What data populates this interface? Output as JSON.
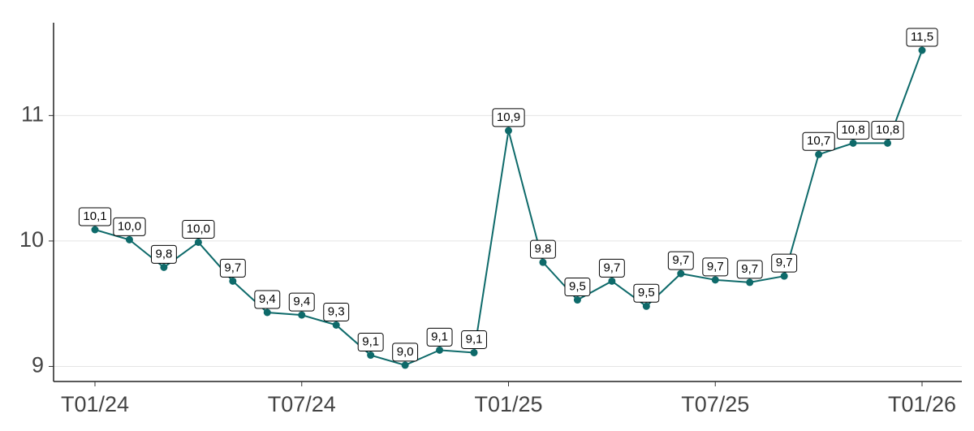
{
  "chart_data": {
    "type": "line",
    "categories": [
      "T01/24",
      null,
      null,
      null,
      null,
      null,
      "T07/24",
      null,
      null,
      null,
      null,
      null,
      "T01/25",
      null,
      null,
      null,
      null,
      null,
      "T07/25",
      null,
      null,
      null,
      null,
      null,
      "T01/26"
    ],
    "series": [
      {
        "color": "#0e6a6a",
        "values": [
          10.09,
          10.01,
          9.79,
          9.99,
          9.68,
          9.43,
          9.41,
          9.33,
          9.09,
          9.01,
          9.13,
          9.11,
          10.88,
          9.83,
          9.53,
          9.68,
          9.48,
          9.74,
          9.69,
          9.67,
          9.72,
          10.69,
          10.78,
          10.78,
          11.52
        ],
        "value_labels": [
          "10,1",
          "10,0",
          "9,8",
          "10,0",
          "9,7",
          "9,4",
          "9,4",
          "9,3",
          "9,1",
          "9,0",
          "9,1",
          "9,1",
          "10,9",
          "9,8",
          "9,5",
          "9,7",
          "9,5",
          "9,7",
          "9,7",
          "9,7",
          "9,7",
          "10,7",
          "10,8",
          "10,8",
          "11,5"
        ]
      }
    ],
    "ylim": [
      8.88,
      11.74
    ],
    "yticks": [
      9,
      10,
      11
    ],
    "grid": true
  }
}
